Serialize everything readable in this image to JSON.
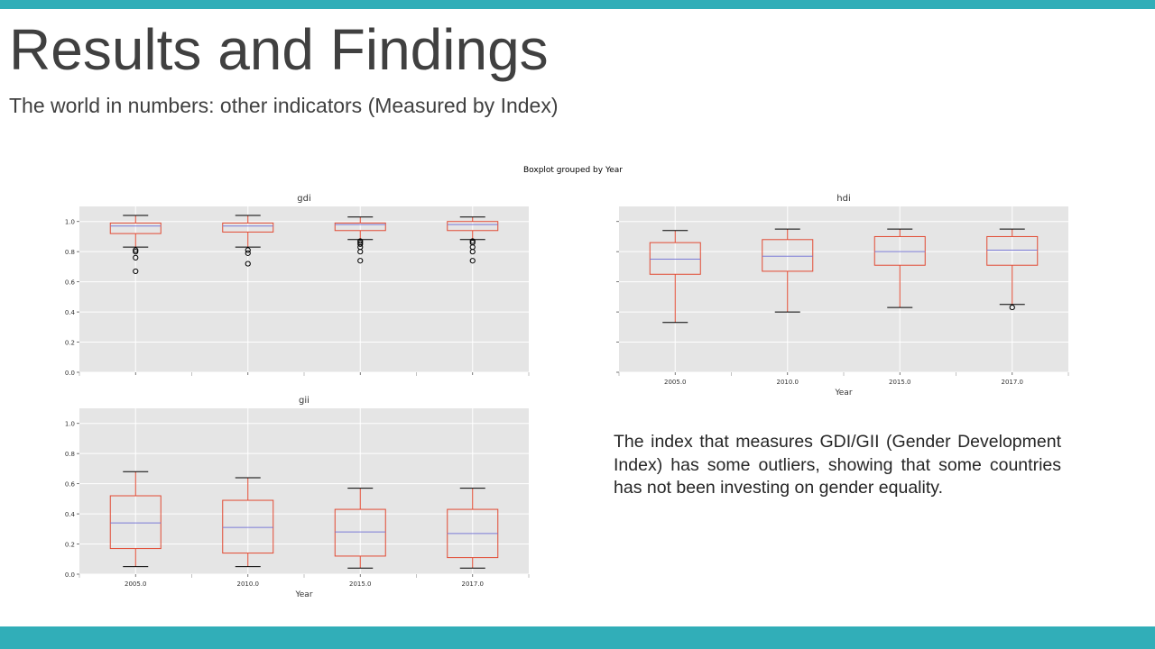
{
  "slide": {
    "title": "Results and Findings",
    "subtitle": "The world in numbers: other indicators (Measured by Index)",
    "note": "The index that measures GDI/GII (Gender Development Index) has some outliers, showing that some countries has not been investing on gender equality.",
    "accent_color": "#31aeb8"
  },
  "chart_data": {
    "type": "boxplot",
    "suptitle": "Boxplot grouped by Year",
    "xlabel": "Year",
    "categories": [
      "2005.0",
      "2010.0",
      "2015.0",
      "2017.0"
    ],
    "yticks": [
      "0.0",
      "0.2",
      "0.4",
      "0.6",
      "0.8",
      "1.0"
    ],
    "ylim": [
      0,
      1.1
    ],
    "grid": true,
    "colors": {
      "background": "#e5e5e5",
      "grid": "#ffffff",
      "box": "#e24a33",
      "median": "#8eba42",
      "whisker": "#000000",
      "outlier": "#000000"
    },
    "panels": [
      {
        "title": "gdi",
        "show_yticklabels": true,
        "show_xticklabels": false,
        "show_xlabel": false,
        "boxes": [
          {
            "category": "2005.0",
            "whislo": 0.83,
            "q1": 0.92,
            "med": 0.97,
            "q3": 0.99,
            "whishi": 1.04,
            "fliers": [
              0.81,
              0.8,
              0.76,
              0.67
            ]
          },
          {
            "category": "2010.0",
            "whislo": 0.83,
            "q1": 0.93,
            "med": 0.97,
            "q3": 0.99,
            "whishi": 1.04,
            "fliers": [
              0.81,
              0.79,
              0.72
            ]
          },
          {
            "category": "2015.0",
            "whislo": 0.88,
            "q1": 0.94,
            "med": 0.98,
            "q3": 0.99,
            "whishi": 1.03,
            "fliers": [
              0.87,
              0.86,
              0.85,
              0.83,
              0.8,
              0.74
            ]
          },
          {
            "category": "2017.0",
            "whislo": 0.88,
            "q1": 0.94,
            "med": 0.98,
            "q3": 1.0,
            "whishi": 1.03,
            "fliers": [
              0.87,
              0.86,
              0.83,
              0.8,
              0.74
            ]
          }
        ]
      },
      {
        "title": "hdi",
        "show_yticklabels": false,
        "show_xticklabels": true,
        "show_xlabel": true,
        "boxes": [
          {
            "category": "2005.0",
            "whislo": 0.33,
            "q1": 0.65,
            "med": 0.75,
            "q3": 0.86,
            "whishi": 0.94,
            "fliers": []
          },
          {
            "category": "2010.0",
            "whislo": 0.4,
            "q1": 0.67,
            "med": 0.77,
            "q3": 0.88,
            "whishi": 0.95,
            "fliers": []
          },
          {
            "category": "2015.0",
            "whislo": 0.43,
            "q1": 0.71,
            "med": 0.8,
            "q3": 0.9,
            "whishi": 0.95,
            "fliers": []
          },
          {
            "category": "2017.0",
            "whislo": 0.45,
            "q1": 0.71,
            "med": 0.81,
            "q3": 0.9,
            "whishi": 0.95,
            "fliers": [
              0.43
            ]
          }
        ]
      },
      {
        "title": "gii",
        "show_yticklabels": true,
        "show_xticklabels": true,
        "show_xlabel": true,
        "boxes": [
          {
            "category": "2005.0",
            "whislo": 0.05,
            "q1": 0.17,
            "med": 0.34,
            "q3": 0.52,
            "whishi": 0.68,
            "fliers": []
          },
          {
            "category": "2010.0",
            "whislo": 0.05,
            "q1": 0.14,
            "med": 0.31,
            "q3": 0.49,
            "whishi": 0.64,
            "fliers": []
          },
          {
            "category": "2015.0",
            "whislo": 0.04,
            "q1": 0.12,
            "med": 0.28,
            "q3": 0.43,
            "whishi": 0.57,
            "fliers": []
          },
          {
            "category": "2017.0",
            "whislo": 0.04,
            "q1": 0.11,
            "med": 0.27,
            "q3": 0.43,
            "whishi": 0.57,
            "fliers": []
          }
        ]
      }
    ]
  }
}
